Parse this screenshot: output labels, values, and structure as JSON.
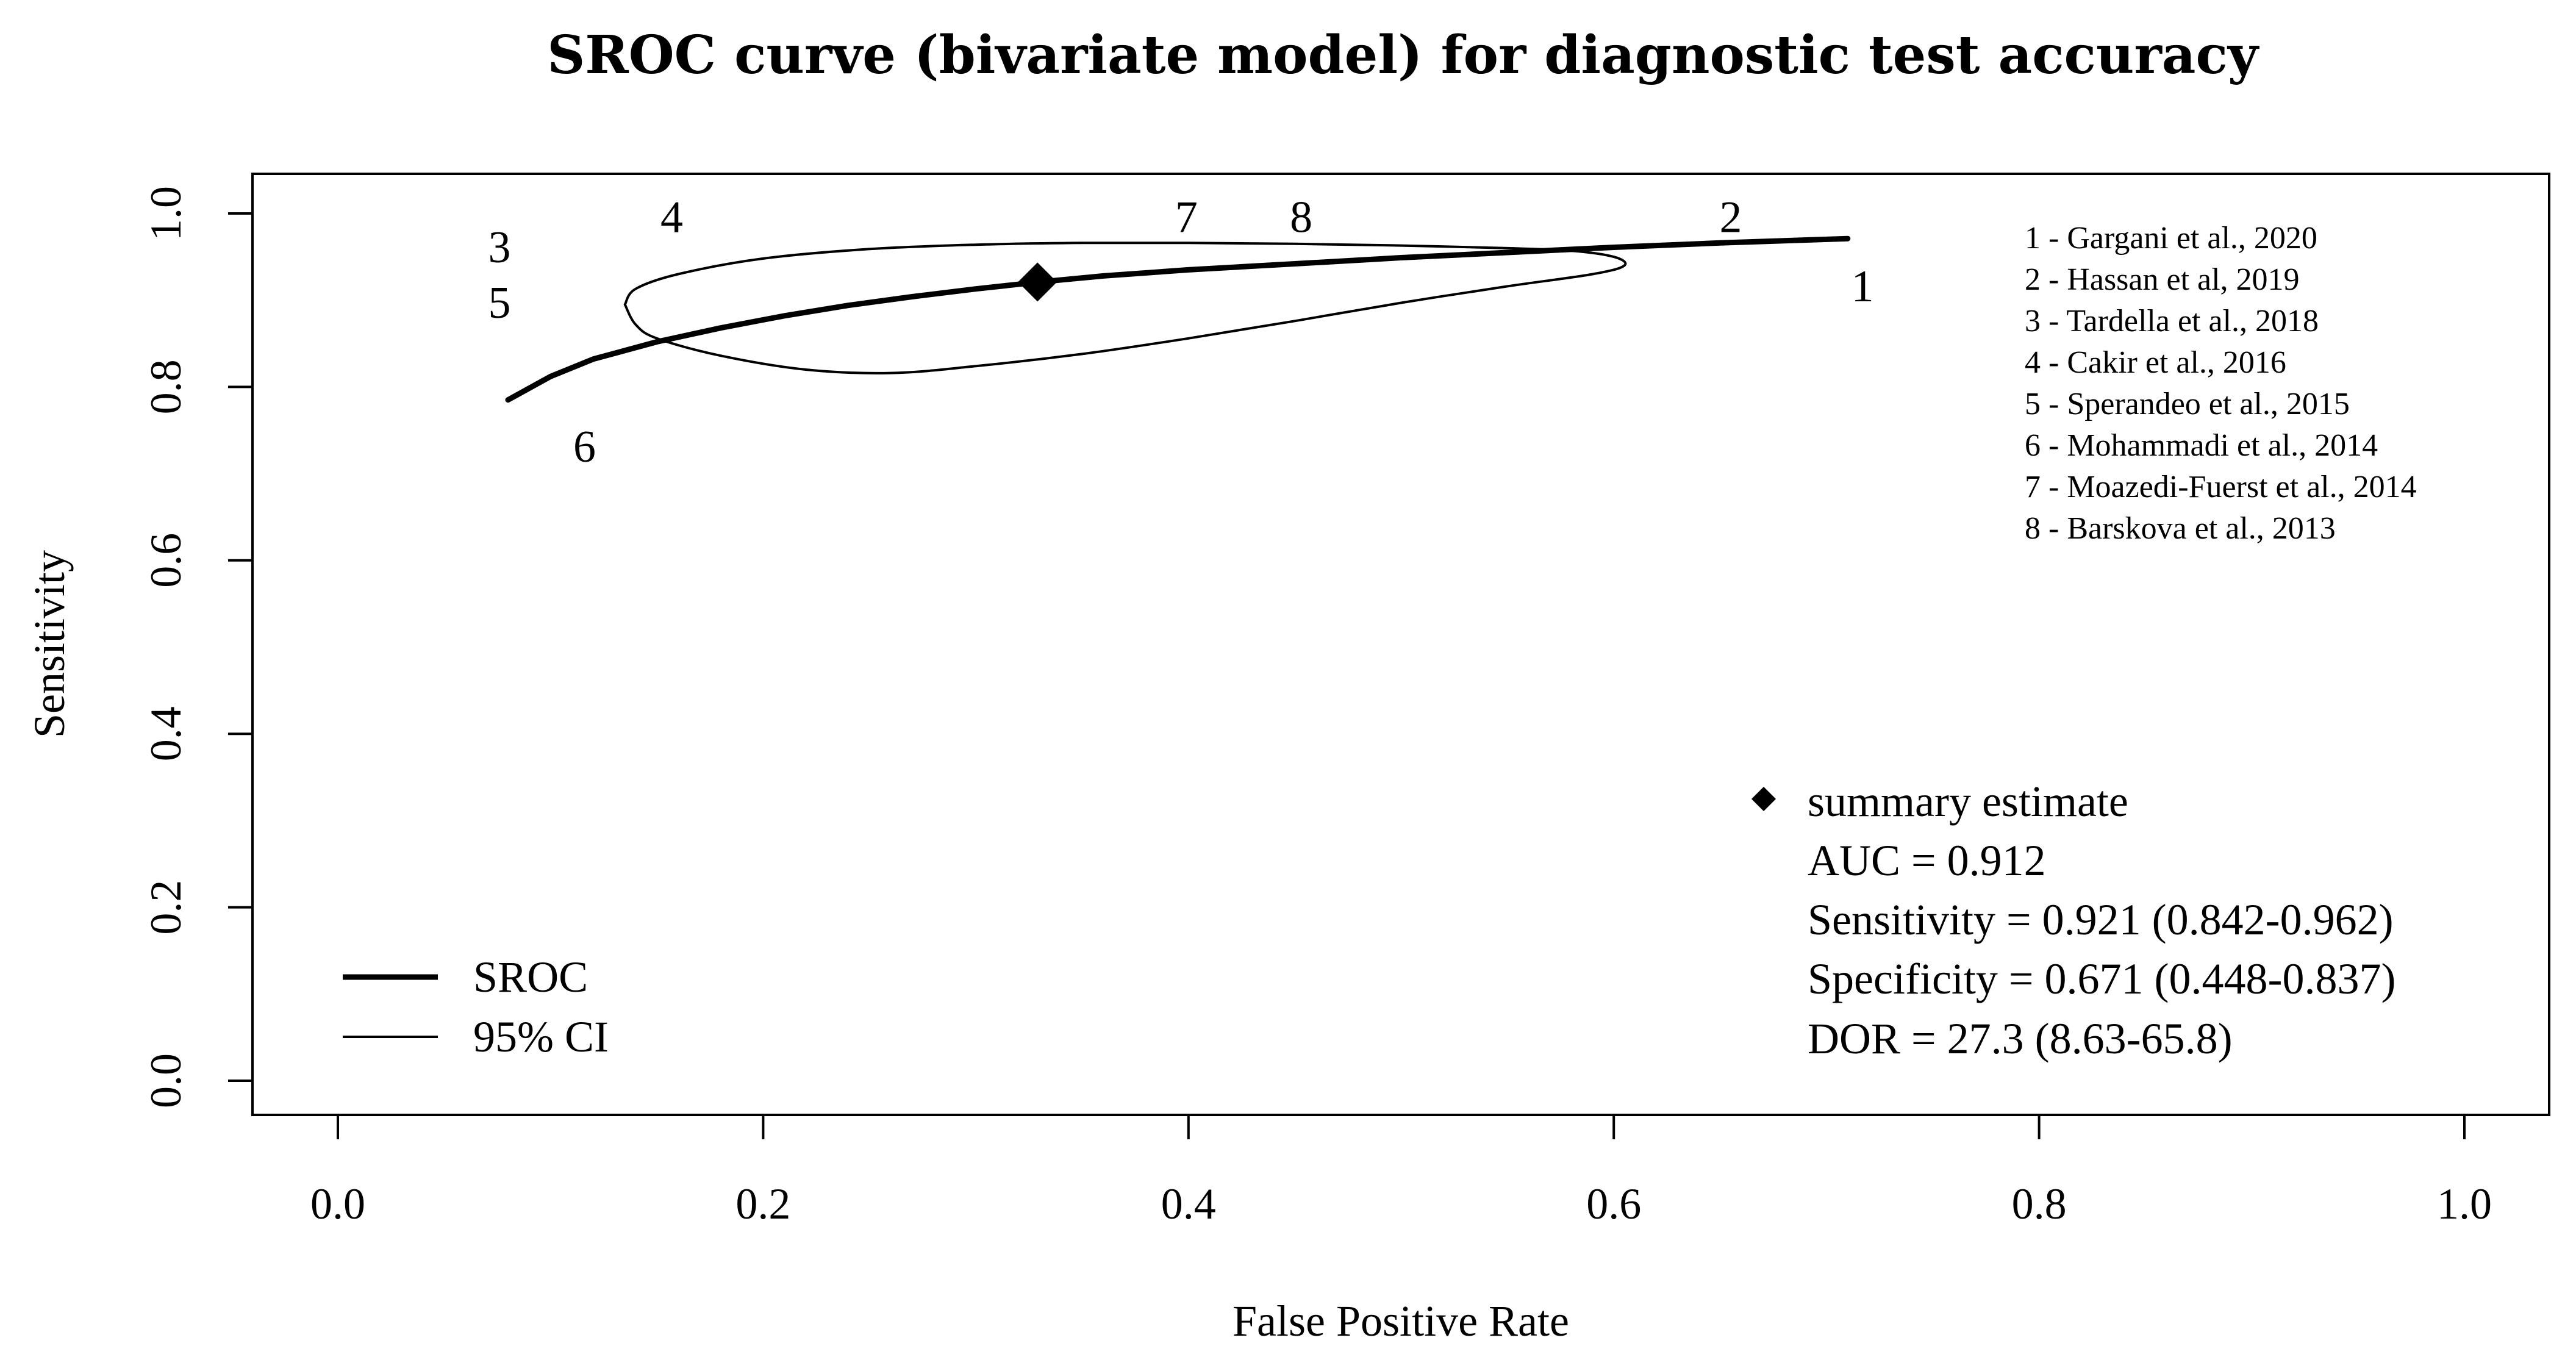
{
  "chart_data": {
    "type": "line",
    "title": "SROC curve (bivariate model) for diagnostic test accuracy",
    "xlabel": "False Positive Rate",
    "ylabel": "Sensitivity",
    "xlim": [
      0,
      1
    ],
    "ylim": [
      0,
      1
    ],
    "x_ticks": [
      "0.0",
      "0.2",
      "0.4",
      "0.6",
      "0.8",
      "1.0"
    ],
    "y_ticks": [
      "0.0",
      "0.2",
      "0.4",
      "0.6",
      "0.8",
      "1.0"
    ],
    "grid": false,
    "sroc_curve": {
      "name": "SROC",
      "points": [
        [
          0.08,
          0.785
        ],
        [
          0.1,
          0.812
        ],
        [
          0.12,
          0.832
        ],
        [
          0.15,
          0.852
        ],
        [
          0.18,
          0.868
        ],
        [
          0.21,
          0.882
        ],
        [
          0.24,
          0.894
        ],
        [
          0.27,
          0.904
        ],
        [
          0.3,
          0.913
        ],
        [
          0.33,
          0.921
        ],
        [
          0.36,
          0.928
        ],
        [
          0.4,
          0.935
        ],
        [
          0.45,
          0.942
        ],
        [
          0.5,
          0.949
        ],
        [
          0.55,
          0.955
        ],
        [
          0.6,
          0.961
        ],
        [
          0.65,
          0.966
        ],
        [
          0.71,
          0.971
        ]
      ]
    },
    "confidence_region": {
      "name": "95% CI",
      "points": [
        [
          0.135,
          0.895
        ],
        [
          0.14,
          0.913
        ],
        [
          0.16,
          0.93
        ],
        [
          0.2,
          0.948
        ],
        [
          0.25,
          0.959
        ],
        [
          0.3,
          0.964
        ],
        [
          0.35,
          0.966
        ],
        [
          0.4,
          0.966
        ],
        [
          0.45,
          0.965
        ],
        [
          0.5,
          0.963
        ],
        [
          0.55,
          0.96
        ],
        [
          0.58,
          0.957
        ],
        [
          0.6,
          0.95
        ],
        [
          0.605,
          0.94
        ],
        [
          0.59,
          0.93
        ],
        [
          0.55,
          0.916
        ],
        [
          0.5,
          0.897
        ],
        [
          0.45,
          0.876
        ],
        [
          0.4,
          0.856
        ],
        [
          0.35,
          0.838
        ],
        [
          0.3,
          0.824
        ],
        [
          0.26,
          0.816
        ],
        [
          0.22,
          0.82
        ],
        [
          0.18,
          0.836
        ],
        [
          0.15,
          0.856
        ],
        [
          0.14,
          0.872
        ],
        [
          0.135,
          0.895
        ]
      ]
    },
    "summary_point": {
      "fpr": 0.329,
      "sensitivity": 0.921
    },
    "study_points": [
      {
        "label": "1",
        "x": 0.717,
        "y": 0.917
      },
      {
        "label": "2",
        "x": 0.655,
        "y": 0.997
      },
      {
        "label": "3",
        "x": 0.076,
        "y": 0.962
      },
      {
        "label": "4",
        "x": 0.157,
        "y": 0.997
      },
      {
        "label": "5",
        "x": 0.076,
        "y": 0.898
      },
      {
        "label": "6",
        "x": 0.116,
        "y": 0.732
      },
      {
        "label": "7",
        "x": 0.399,
        "y": 0.997
      },
      {
        "label": "8",
        "x": 0.453,
        "y": 0.997
      }
    ],
    "study_legend": [
      "1 - Gargani et al., 2020",
      "2 - Hassan et al, 2019",
      "3 - Tardella et al., 2018",
      "4 - Cakir et al., 2016",
      "5 - Sperandeo et al., 2015",
      "6 - Mohammadi et al., 2014",
      "7 - Moazedi-Fuerst et al., 2014",
      "8 - Barskova et al., 2013"
    ],
    "legend": {
      "placement": "bottom-left",
      "entries": [
        "SROC",
        "95% CI"
      ]
    },
    "summary_legend": {
      "placement": "bottom-right",
      "marker_label": "summary estimate",
      "lines": [
        "AUC = 0.912",
        "Sensitivity = 0.921 (0.842-0.962)",
        "Specificity = 0.671 (0.448-0.837)",
        "DOR = 27.3 (8.63-65.8)"
      ]
    }
  }
}
